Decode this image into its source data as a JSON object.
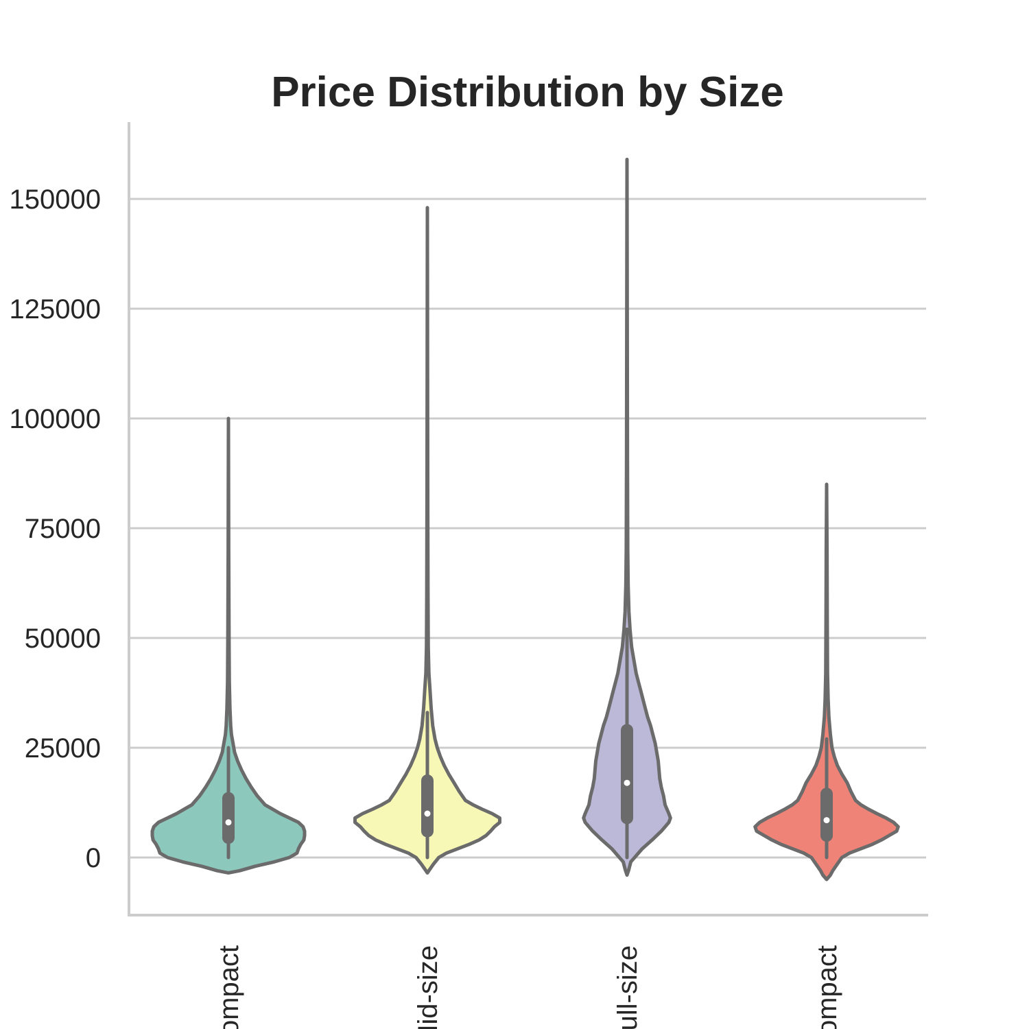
{
  "chart_data": {
    "type": "violin",
    "title": "Price Distribution by Size",
    "xlabel": "",
    "ylabel": "",
    "ylim": [
      -13000,
      168000
    ],
    "yticks": [
      0,
      25000,
      50000,
      75000,
      100000,
      125000,
      150000
    ],
    "ytick_labels": [
      "0",
      "25000",
      "50000",
      "75000",
      "100000",
      "125000",
      "150000"
    ],
    "grid": "horizontal",
    "categories": [
      "Compact",
      "Mid-size",
      "Full-size",
      "Compact"
    ],
    "colors": [
      "#8dc8bd",
      "#f7f7b6",
      "#bcb9d8",
      "#ef8377"
    ],
    "violins": [
      {
        "min": 0,
        "q1": 4500,
        "median": 8000,
        "q3": 13500,
        "max": 25000,
        "kde_min": -3500,
        "kde_max": 100000,
        "profile": [
          [
            -3500,
            0.0
          ],
          [
            -3000,
            0.15
          ],
          [
            -2000,
            0.35
          ],
          [
            -1000,
            0.6
          ],
          [
            0,
            0.8
          ],
          [
            1000,
            0.9
          ],
          [
            2000,
            0.92
          ],
          [
            3000,
            0.95
          ],
          [
            4000,
            0.99
          ],
          [
            5000,
            1.0
          ],
          [
            6000,
            1.0
          ],
          [
            7000,
            0.98
          ],
          [
            8000,
            0.92
          ],
          [
            9000,
            0.8
          ],
          [
            10000,
            0.68
          ],
          [
            11000,
            0.58
          ],
          [
            12000,
            0.48
          ],
          [
            14000,
            0.38
          ],
          [
            16000,
            0.3
          ],
          [
            18000,
            0.23
          ],
          [
            20000,
            0.17
          ],
          [
            22000,
            0.12
          ],
          [
            24000,
            0.08
          ],
          [
            26000,
            0.06
          ],
          [
            28000,
            0.04
          ],
          [
            30000,
            0.03
          ],
          [
            34000,
            0.02
          ],
          [
            40000,
            0.012
          ],
          [
            50000,
            0.008
          ],
          [
            70000,
            0.004
          ],
          [
            100000,
            0.0
          ]
        ]
      },
      {
        "min": 0,
        "q1": 6000,
        "median": 10000,
        "q3": 17500,
        "max": 33000,
        "kde_min": -3500,
        "kde_max": 148000,
        "profile": [
          [
            -3500,
            0.0
          ],
          [
            -2500,
            0.04
          ],
          [
            -1500,
            0.08
          ],
          [
            0,
            0.15
          ],
          [
            1000,
            0.25
          ],
          [
            2000,
            0.4
          ],
          [
            3000,
            0.55
          ],
          [
            4000,
            0.68
          ],
          [
            5000,
            0.77
          ],
          [
            6000,
            0.83
          ],
          [
            7000,
            0.88
          ],
          [
            8000,
            0.95
          ],
          [
            9000,
            0.95
          ],
          [
            10000,
            0.85
          ],
          [
            11000,
            0.72
          ],
          [
            12000,
            0.6
          ],
          [
            13000,
            0.5
          ],
          [
            15000,
            0.42
          ],
          [
            17000,
            0.35
          ],
          [
            19000,
            0.28
          ],
          [
            21000,
            0.22
          ],
          [
            23000,
            0.17
          ],
          [
            25000,
            0.13
          ],
          [
            27000,
            0.1
          ],
          [
            30000,
            0.07
          ],
          [
            34000,
            0.05
          ],
          [
            38000,
            0.035
          ],
          [
            42000,
            0.02
          ],
          [
            48000,
            0.012
          ],
          [
            60000,
            0.008
          ],
          [
            80000,
            0.005
          ],
          [
            110000,
            0.003
          ],
          [
            148000,
            0.0
          ]
        ]
      },
      {
        "min": 0,
        "q1": 9000,
        "median": 17000,
        "q3": 29000,
        "max": 52000,
        "kde_min": -4000,
        "kde_max": 159000,
        "profile": [
          [
            -4000,
            0.0
          ],
          [
            -3000,
            0.02
          ],
          [
            -1000,
            0.05
          ],
          [
            0,
            0.1
          ],
          [
            2000,
            0.2
          ],
          [
            4000,
            0.33
          ],
          [
            6000,
            0.45
          ],
          [
            7000,
            0.5
          ],
          [
            8000,
            0.55
          ],
          [
            9000,
            0.57
          ],
          [
            10000,
            0.55
          ],
          [
            12000,
            0.5
          ],
          [
            14000,
            0.48
          ],
          [
            16000,
            0.45
          ],
          [
            18000,
            0.43
          ],
          [
            20000,
            0.42
          ],
          [
            22000,
            0.41
          ],
          [
            24000,
            0.39
          ],
          [
            26000,
            0.37
          ],
          [
            28000,
            0.34
          ],
          [
            30000,
            0.31
          ],
          [
            32000,
            0.27
          ],
          [
            34000,
            0.24
          ],
          [
            36000,
            0.21
          ],
          [
            38000,
            0.18
          ],
          [
            40000,
            0.15
          ],
          [
            42000,
            0.12
          ],
          [
            45000,
            0.09
          ],
          [
            48000,
            0.06
          ],
          [
            52000,
            0.04
          ],
          [
            56000,
            0.025
          ],
          [
            62000,
            0.015
          ],
          [
            70000,
            0.01
          ],
          [
            90000,
            0.006
          ],
          [
            120000,
            0.004
          ],
          [
            159000,
            0.0
          ]
        ]
      },
      {
        "min": 0,
        "q1": 5000,
        "median": 8500,
        "q3": 14500,
        "max": 27000,
        "kde_min": -5000,
        "kde_max": 85000,
        "profile": [
          [
            -5000,
            0.0
          ],
          [
            -4000,
            0.05
          ],
          [
            -3000,
            0.08
          ],
          [
            -2000,
            0.12
          ],
          [
            0,
            0.2
          ],
          [
            1000,
            0.3
          ],
          [
            2000,
            0.45
          ],
          [
            3000,
            0.6
          ],
          [
            4000,
            0.72
          ],
          [
            5000,
            0.82
          ],
          [
            6000,
            0.92
          ],
          [
            7000,
            0.94
          ],
          [
            8000,
            0.88
          ],
          [
            9000,
            0.78
          ],
          [
            10000,
            0.66
          ],
          [
            11000,
            0.55
          ],
          [
            12000,
            0.45
          ],
          [
            13000,
            0.38
          ],
          [
            15000,
            0.32
          ],
          [
            17000,
            0.27
          ],
          [
            19000,
            0.2
          ],
          [
            21000,
            0.14
          ],
          [
            23000,
            0.1
          ],
          [
            25000,
            0.07
          ],
          [
            28000,
            0.05
          ],
          [
            32000,
            0.03
          ],
          [
            36000,
            0.02
          ],
          [
            42000,
            0.012
          ],
          [
            55000,
            0.008
          ],
          [
            70000,
            0.005
          ],
          [
            85000,
            0.0
          ]
        ]
      }
    ]
  }
}
